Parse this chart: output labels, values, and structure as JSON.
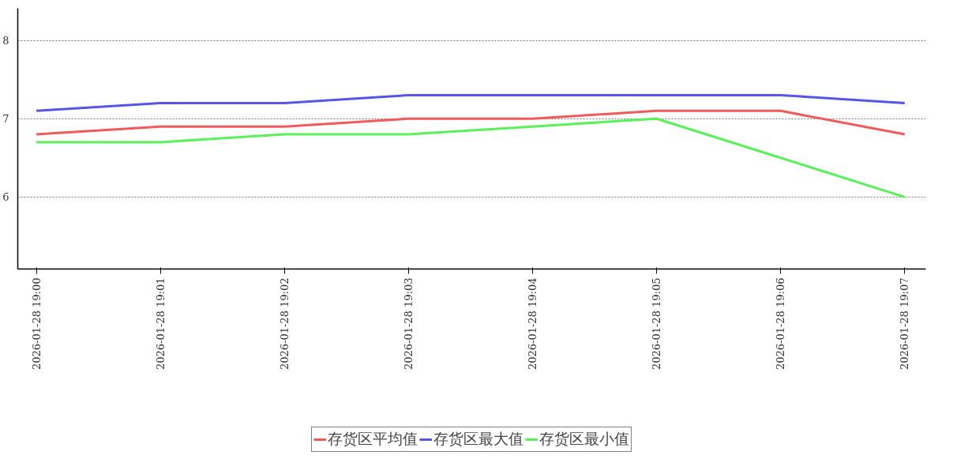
{
  "chart_data": {
    "type": "line",
    "categories": [
      "2026-01-28 19:00",
      "2026-01-28 19:01",
      "2026-01-28 19:02",
      "2026-01-28 19:03",
      "2026-01-28 19:04",
      "2026-01-28 19:05",
      "2026-01-28 19:06",
      "2026-01-28 19:07"
    ],
    "series": [
      {
        "name": "存货区平均值",
        "color": "#f05a5a",
        "values": [
          6.8,
          6.9,
          6.9,
          7.0,
          7.0,
          7.1,
          7.1,
          6.8
        ]
      },
      {
        "name": "存货区最大值",
        "color": "#5555e6",
        "values": [
          7.1,
          7.2,
          7.2,
          7.3,
          7.3,
          7.3,
          7.3,
          7.2
        ]
      },
      {
        "name": "存货区最小值",
        "color": "#5af05a",
        "values": [
          6.7,
          6.7,
          6.8,
          6.8,
          6.9,
          7.0,
          6.5,
          6.0
        ]
      }
    ],
    "ylim": [
      5.08,
      8.41
    ],
    "yticks": [
      6,
      7,
      8
    ],
    "grid": "y",
    "legend": "bottom",
    "marker": "none",
    "line_style": "solid"
  }
}
